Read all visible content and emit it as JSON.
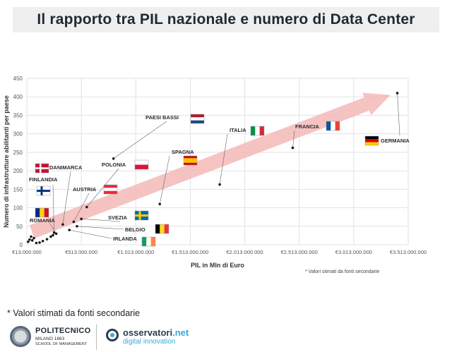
{
  "title": "Il rapporto tra PIL nazionale e numero di Data Center",
  "footnote": "* Valori stimati da fonti secondarie",
  "logos": {
    "polimi_name": "POLITECNICO",
    "polimi_sub1": "MILANO 1863",
    "polimi_sub2": "SCHOOL OF MANAGEMENT",
    "osserv_name": "osservatori",
    "osserv_tld": ".net",
    "osserv_sub": "digital innovation"
  },
  "colors": {
    "arrow": "#f5b8b8",
    "grid": "#e2e2e2",
    "axis_text": "#555555",
    "point": "#1a1a1a",
    "leader": "#666666"
  },
  "chart_data": {
    "type": "scatter",
    "title": "Il rapporto tra PIL nazionale e numero di Data Center",
    "xlabel": "PIL in Mln di Euro",
    "ylabel": "Numero di infrastrutture abilitanti per paese",
    "xlim": [
      13000000,
      3513000000
    ],
    "ylim": [
      0,
      450
    ],
    "xticks": [
      13000000,
      513000000,
      1013000000,
      1513000000,
      2013000000,
      2513000000,
      3013000000,
      3513000000
    ],
    "xtick_labels": [
      "€13.000.000",
      "€513.000.000",
      "€1.013.000.000",
      "€1.513.000.000",
      "€2.013.000.000",
      "€2.513.000.000",
      "€3.013.000.000",
      "€3.513.000.000"
    ],
    "yticks": [
      0,
      50,
      100,
      150,
      200,
      250,
      300,
      350,
      400,
      450
    ],
    "ytick_labels": [
      "0",
      "50",
      "100",
      "150",
      "200",
      "250",
      "300",
      "350",
      "400",
      "450"
    ],
    "grid": true,
    "note": "* Valori stimati da fonti secondarie",
    "trend_arrow": {
      "from": [
        60000000,
        35
      ],
      "to": [
        3350000000,
        405
      ]
    },
    "labeled_points": [
      {
        "name": "PAESI BASSI",
        "flag": "nl",
        "x": 808000000,
        "y": 233
      },
      {
        "name": "ITALIA",
        "flag": "it",
        "x": 1783000000,
        "y": 163
      },
      {
        "name": "FRANCIA",
        "flag": "fr",
        "x": 2453000000,
        "y": 262
      },
      {
        "name": "GERMANIA",
        "flag": "de",
        "x": 3413000000,
        "y": 410
      },
      {
        "name": "SPAGNA",
        "flag": "es",
        "x": 1233000000,
        "y": 110
      },
      {
        "name": "POLONIA",
        "flag": "pl",
        "x": 563000000,
        "y": 102
      },
      {
        "name": "DANIMARCA",
        "flag": "dk",
        "x": 343000000,
        "y": 55
      },
      {
        "name": "FINLANDIA",
        "flag": "fi",
        "x": 263000000,
        "y": 33
      },
      {
        "name": "AUSTRIA",
        "flag": "at",
        "x": 443000000,
        "y": 62
      },
      {
        "name": "SVEZIA",
        "flag": "se",
        "x": 513000000,
        "y": 70
      },
      {
        "name": "BELGIO",
        "flag": "be",
        "x": 473000000,
        "y": 50
      },
      {
        "name": "IRLANDA",
        "flag": "ie",
        "x": 403000000,
        "y": 40
      },
      {
        "name": "ROMANIA",
        "flag": "ro",
        "x": 283000000,
        "y": 30
      }
    ],
    "unlabeled_points": [
      {
        "x": 25000000,
        "y": 8
      },
      {
        "x": 38000000,
        "y": 14
      },
      {
        "x": 52000000,
        "y": 22
      },
      {
        "x": 63000000,
        "y": 12
      },
      {
        "x": 78000000,
        "y": 18
      },
      {
        "x": 100000000,
        "y": 5
      },
      {
        "x": 130000000,
        "y": 6
      },
      {
        "x": 160000000,
        "y": 10
      },
      {
        "x": 198000000,
        "y": 15
      },
      {
        "x": 233000000,
        "y": 22
      },
      {
        "x": 253000000,
        "y": 26
      }
    ]
  }
}
